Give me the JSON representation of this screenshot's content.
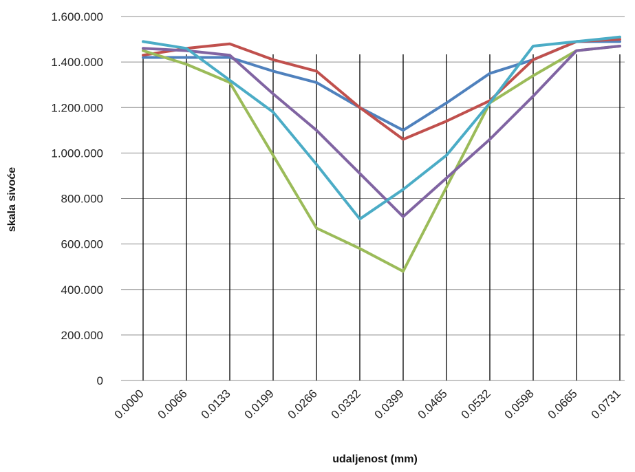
{
  "chart_data": {
    "type": "line",
    "xlabel": "udaljenost (mm)",
    "ylabel": "skala sivoće",
    "title": "",
    "ylim": [
      0,
      1600000
    ],
    "y_ticks": [
      {
        "value": 0,
        "label": "0"
      },
      {
        "value": 200000,
        "label": "200.000"
      },
      {
        "value": 400000,
        "label": "400.000"
      },
      {
        "value": 600000,
        "label": "600.000"
      },
      {
        "value": 800000,
        "label": "800.000"
      },
      {
        "value": 1000000,
        "label": "1.000.000"
      },
      {
        "value": 1200000,
        "label": "1.200.000"
      },
      {
        "value": 1400000,
        "label": "1.400.000"
      },
      {
        "value": 1600000,
        "label": "1.600.000"
      }
    ],
    "categories": [
      "0.0000",
      "0.0066",
      "0.0133",
      "0.0199",
      "0.0266",
      "0.0332",
      "0.0399",
      "0.0465",
      "0.0532",
      "0.0598",
      "0.0665",
      "0.0731"
    ],
    "vertical_gridlines": true,
    "horizontal_gridlines": true,
    "legend": "none",
    "series": [
      {
        "color": "#4F81BD",
        "values": [
          1420000,
          1420000,
          1420000,
          1360000,
          1310000,
          1200000,
          1100000,
          1220000,
          1350000,
          1410000,
          1490000,
          1490000
        ]
      },
      {
        "color": "#C0504D",
        "values": [
          1430000,
          1460000,
          1480000,
          1410000,
          1360000,
          1200000,
          1060000,
          1140000,
          1230000,
          1410000,
          1490000,
          1500000
        ]
      },
      {
        "color": "#9BBB59",
        "values": [
          1450000,
          1390000,
          1310000,
          990000,
          670000,
          580000,
          480000,
          850000,
          1220000,
          1340000,
          1450000,
          1470000
        ]
      },
      {
        "color": "#8064A2",
        "values": [
          1460000,
          1450000,
          1430000,
          1260000,
          1100000,
          910000,
          720000,
          890000,
          1060000,
          1250000,
          1450000,
          1470000
        ]
      },
      {
        "color": "#4BACC6",
        "values": [
          1490000,
          1460000,
          1320000,
          1180000,
          950000,
          710000,
          840000,
          990000,
          1220000,
          1470000,
          1490000,
          1510000
        ]
      }
    ]
  }
}
